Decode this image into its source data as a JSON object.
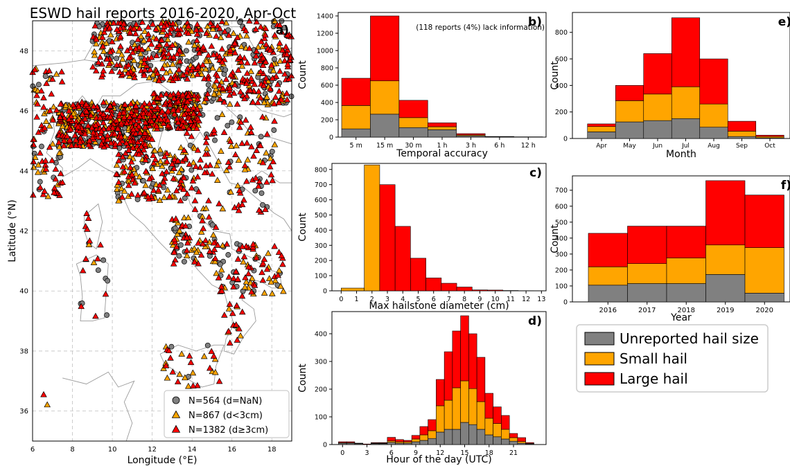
{
  "title": "ESWD hail reports 2016-2020, Apr-Oct",
  "colors": {
    "unreported": "#808080",
    "small": "#FFA500",
    "large": "#FF0000",
    "grid": "#c0c0c0",
    "coast": "#9a9a9a"
  },
  "legend": {
    "unreported": "Unreported hail size",
    "small": "Small hail",
    "large": "Large hail"
  },
  "chart_data": [
    {
      "id": "a",
      "type": "scatter",
      "panel_label": "a)",
      "xlabel": "Longitude (°E)",
      "ylabel": "Latitude (°N)",
      "xlim": [
        6,
        19
      ],
      "ylim": [
        35,
        49
      ],
      "xticks": [
        "6",
        "8",
        "10",
        "12",
        "14",
        "16",
        "18"
      ],
      "yticks": [
        "36",
        "38",
        "40",
        "42",
        "44",
        "46",
        "48"
      ],
      "grid": true,
      "legend_position": "lower-right",
      "series": [
        {
          "name": "N=564 (d=NaN)",
          "marker": "circle",
          "count": 564
        },
        {
          "name": "N=867 (d<3cm)",
          "marker": "triangle",
          "count": 867
        },
        {
          "name": "N=1382 (d≥3cm)",
          "marker": "triangle",
          "count": 1382
        }
      ]
    },
    {
      "id": "b",
      "type": "bar",
      "stacked": true,
      "panel_label": "b)",
      "annotation": "(118 reports (4%) lack information)",
      "categories": [
        "5 m",
        "15 m",
        "30 m",
        "1 h",
        "3 h",
        "6 h",
        "12 h"
      ],
      "xlabel": "Temporal accuracy",
      "ylabel": "Count",
      "ylim": [
        0,
        1440
      ],
      "yticks": [
        0,
        200,
        400,
        600,
        800,
        1000,
        1200,
        1400
      ],
      "series": [
        {
          "key": "unreported",
          "values": [
            95,
            265,
            110,
            85,
            15,
            2,
            1
          ]
        },
        {
          "key": "small",
          "values": [
            270,
            385,
            115,
            35,
            10,
            2,
            1
          ]
        },
        {
          "key": "large",
          "values": [
            315,
            750,
            200,
            45,
            15,
            3,
            1
          ]
        }
      ]
    },
    {
      "id": "c",
      "type": "bar",
      "stacked": false,
      "panel_label": "c)",
      "bins": [
        0,
        1,
        2,
        3,
        4,
        5,
        6,
        7,
        8,
        9,
        10,
        11,
        12,
        13
      ],
      "xticks": [
        "0",
        "1",
        "2",
        "3",
        "4",
        "5",
        "6",
        "7",
        "8",
        "9",
        "10",
        "11",
        "12",
        "13"
      ],
      "xlabel": "Max hailstone diameter (cm)",
      "ylabel": "Count",
      "ylim": [
        0,
        840
      ],
      "yticks": [
        0,
        100,
        200,
        300,
        400,
        500,
        600,
        700,
        800
      ],
      "bars": [
        {
          "from": 0,
          "to": 1.5,
          "value": 18,
          "key": "small"
        },
        {
          "from": 1.5,
          "to": 2.5,
          "value": 830,
          "key": "small"
        },
        {
          "from": 2.5,
          "to": 3.5,
          "value": 700,
          "key": "large"
        },
        {
          "from": 3.5,
          "to": 4.5,
          "value": 425,
          "key": "large"
        },
        {
          "from": 4.5,
          "to": 5.5,
          "value": 215,
          "key": "large"
        },
        {
          "from": 5.5,
          "to": 6.5,
          "value": 85,
          "key": "large"
        },
        {
          "from": 6.5,
          "to": 7.5,
          "value": 50,
          "key": "large"
        },
        {
          "from": 7.5,
          "to": 8.5,
          "value": 25,
          "key": "large"
        },
        {
          "from": 8.5,
          "to": 9.5,
          "value": 6,
          "key": "large"
        },
        {
          "from": 9.5,
          "to": 10.5,
          "value": 5,
          "key": "large"
        },
        {
          "from": 10.5,
          "to": 11.5,
          "value": 2,
          "key": "large"
        },
        {
          "from": 11.5,
          "to": 12.5,
          "value": 1,
          "key": "large"
        }
      ]
    },
    {
      "id": "d",
      "type": "bar",
      "stacked": true,
      "panel_label": "d)",
      "x": [
        0,
        1,
        2,
        3,
        4,
        5,
        6,
        7,
        8,
        9,
        10,
        11,
        12,
        13,
        14,
        15,
        16,
        17,
        18,
        19,
        20,
        21,
        22,
        23
      ],
      "xticks": [
        "0",
        "3",
        "6",
        "9",
        "12",
        "15",
        "18",
        "21"
      ],
      "xlabel": "Hour of the day (UTC)",
      "ylabel": "Count",
      "ylim": [
        0,
        480
      ],
      "yticks": [
        0,
        100,
        200,
        300,
        400
      ],
      "series": [
        {
          "key": "unreported",
          "values": [
            5,
            5,
            3,
            0,
            3,
            3,
            8,
            5,
            5,
            10,
            15,
            22,
            45,
            55,
            55,
            80,
            72,
            55,
            35,
            28,
            20,
            12,
            5,
            2
          ]
        },
        {
          "key": "small",
          "values": [
            2,
            2,
            1,
            0,
            2,
            2,
            5,
            5,
            5,
            10,
            20,
            28,
            95,
            105,
            150,
            150,
            130,
            100,
            60,
            48,
            35,
            13,
            6,
            2
          ]
        },
        {
          "key": "large",
          "values": [
            3,
            3,
            1,
            2,
            2,
            2,
            13,
            8,
            5,
            13,
            30,
            40,
            95,
            175,
            205,
            235,
            198,
            160,
            90,
            60,
            50,
            15,
            14,
            3
          ]
        }
      ]
    },
    {
      "id": "e",
      "type": "bar",
      "stacked": true,
      "panel_label": "e)",
      "categories": [
        "Apr",
        "May",
        "Jun",
        "Jul",
        "Aug",
        "Sep",
        "Oct"
      ],
      "xlabel": "Month",
      "ylabel": "Count",
      "ylim": [
        0,
        950
      ],
      "yticks": [
        0,
        200,
        400,
        600,
        800
      ],
      "series": [
        {
          "key": "unreported",
          "values": [
            50,
            125,
            135,
            150,
            85,
            15,
            5
          ]
        },
        {
          "key": "small",
          "values": [
            40,
            160,
            200,
            240,
            175,
            40,
            10
          ]
        },
        {
          "key": "large",
          "values": [
            20,
            115,
            305,
            520,
            340,
            75,
            10
          ]
        }
      ]
    },
    {
      "id": "f",
      "type": "bar",
      "stacked": true,
      "panel_label": "f)",
      "categories": [
        "2016",
        "2017",
        "2018",
        "2019",
        "2020"
      ],
      "xlabel": "Year",
      "ylabel": "Count",
      "ylim": [
        0,
        790
      ],
      "yticks": [
        0,
        100,
        200,
        300,
        400,
        500,
        600,
        700
      ],
      "series": [
        {
          "key": "unreported",
          "values": [
            105,
            115,
            115,
            172,
            55
          ]
        },
        {
          "key": "small",
          "values": [
            115,
            125,
            160,
            185,
            285
          ]
        },
        {
          "key": "large",
          "values": [
            210,
            235,
            200,
            403,
            330
          ]
        }
      ]
    }
  ]
}
